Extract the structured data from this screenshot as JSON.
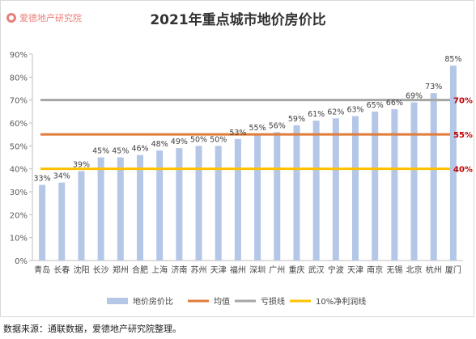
{
  "logo": {
    "text": "爱德地产研究院",
    "color": "#e8807a"
  },
  "source_note": "数据来源：通联数据，爱德地产研究院整理。",
  "chart_data": {
    "type": "bar",
    "title": "2021年重点城市地价房价比",
    "categories": [
      "青岛",
      "长春",
      "沈阳",
      "长沙",
      "郑州",
      "合肥",
      "上海",
      "济南",
      "苏州",
      "天津",
      "福州",
      "深圳",
      "广州",
      "重庆",
      "武汉",
      "宁波",
      "天津",
      "南京",
      "无锡",
      "北京",
      "杭州",
      "厦门"
    ],
    "series": [
      {
        "name": "地价房价比",
        "type": "bar",
        "color": "#b4c7e7",
        "values": [
          33,
          34,
          39,
          45,
          45,
          46,
          48,
          49,
          50,
          50,
          53,
          55,
          56,
          59,
          61,
          62,
          63,
          65,
          66,
          69,
          73,
          85
        ],
        "labels": [
          "33%",
          "34%",
          "39%",
          "45%",
          "45%",
          "46%",
          "48%",
          "49%",
          "50%",
          "50%",
          "53%",
          "55%",
          "56%",
          "59%",
          "61%",
          "62%",
          "63%",
          "65%",
          "66%",
          "69%",
          "73%",
          "85%"
        ]
      },
      {
        "name": "均值",
        "type": "line",
        "color": "#e07b39",
        "value": 55,
        "label": "55%",
        "label_color": "#c00000"
      },
      {
        "name": "亏损线",
        "type": "line",
        "color": "#a5a5a5",
        "value": 70,
        "label": "70%",
        "label_color": "#c00000"
      },
      {
        "name": "10%净利润线",
        "type": "line",
        "color": "#ffc000",
        "value": 40,
        "label": "40%",
        "label_color": "#c00000"
      }
    ],
    "yticks": [
      "0%",
      "10%",
      "20%",
      "30%",
      "40%",
      "50%",
      "60%",
      "70%",
      "80%",
      "90%"
    ],
    "ylim": [
      0,
      90
    ],
    "legend_position": "bottom",
    "grid": false
  }
}
